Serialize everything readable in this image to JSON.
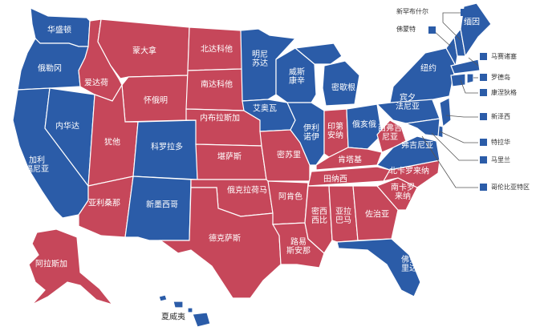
{
  "colors": {
    "red": "#c6475a",
    "blue": "#2b5ca8",
    "label": "#ffffff",
    "callout_text": "#333333"
  },
  "states": {
    "washington": "华盛顿",
    "oregon": "俄勒冈",
    "california": "加利\n福尼亚",
    "nevada": "内华达",
    "idaho": "爱达荷",
    "montana": "蒙大拿",
    "wyoming": "怀俄明",
    "utah": "犹他",
    "colorado": "科罗拉多",
    "arizona": "亚利桑那",
    "new_mexico": "新墨西哥",
    "north_dakota": "北达科他",
    "south_dakota": "南达科他",
    "nebraska": "内布拉斯加",
    "kansas": "堪萨斯",
    "oklahoma": "俄克拉荷马",
    "texas": "德克萨斯",
    "minnesota": "明尼\n苏达",
    "iowa": "艾奥瓦",
    "missouri": "密苏里",
    "arkansas": "阿肯色",
    "louisiana": "路易\n斯安那",
    "wisconsin": "威斯\n康辛",
    "illinois": "伊利\n诺伊",
    "michigan": "密歇根",
    "indiana": "印第\n安纳",
    "ohio": "俄亥俄",
    "kentucky": "肯塔基",
    "tennessee": "田纳西",
    "mississippi": "密西\n西比",
    "alabama": "亚拉\n巴马",
    "georgia": "佐治亚",
    "florida": "佛罗\n里达",
    "south_carolina": "南卡罗\n来纳",
    "north_carolina": "北卡罗来纳",
    "virginia": "弗吉尼亚",
    "west_virginia": "西弗吉\n尼亚",
    "pennsylvania": "宾夕\n法尼亚",
    "new_york": "纽约",
    "maine": "缅因",
    "alaska": "阿拉斯加",
    "hawaii": "夏威夷"
  },
  "callouts": {
    "new_hampshire": "新罕布什尔",
    "vermont": "佛蒙特",
    "massachusetts": "马赛诸塞",
    "rhode_island": "罗德岛",
    "connecticut": "康涅狄格",
    "new_jersey": "新泽西",
    "delaware": "特拉华",
    "maryland": "马里兰",
    "dc": "哥伦比亚特区"
  }
}
